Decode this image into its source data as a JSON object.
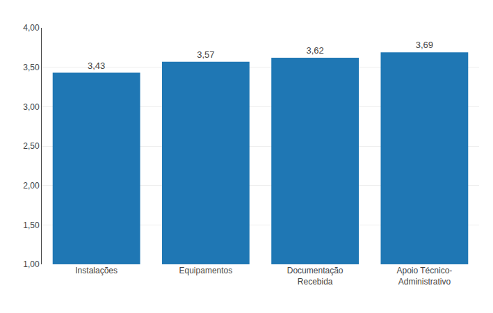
{
  "chart_data": {
    "type": "bar",
    "categories": [
      "Instalações",
      "Equipamentos",
      "Documentação\nRecebida",
      "Apoio Técnico-\nAdministrativo"
    ],
    "values": [
      3.43,
      3.57,
      3.62,
      3.69
    ],
    "value_labels": [
      "3,43",
      "3,57",
      "3,62",
      "3,69"
    ],
    "data_labels": true,
    "ylim": [
      1.0,
      4.0
    ],
    "yticks": [
      {
        "value": 1.0,
        "label": "1,00"
      },
      {
        "value": 1.5,
        "label": "1,50"
      },
      {
        "value": 2.0,
        "label": "2,00"
      },
      {
        "value": 2.5,
        "label": "2,50"
      },
      {
        "value": 3.0,
        "label": "3,00"
      },
      {
        "value": 3.5,
        "label": "3,50"
      },
      {
        "value": 4.0,
        "label": "4,00"
      }
    ],
    "grid": true
  }
}
